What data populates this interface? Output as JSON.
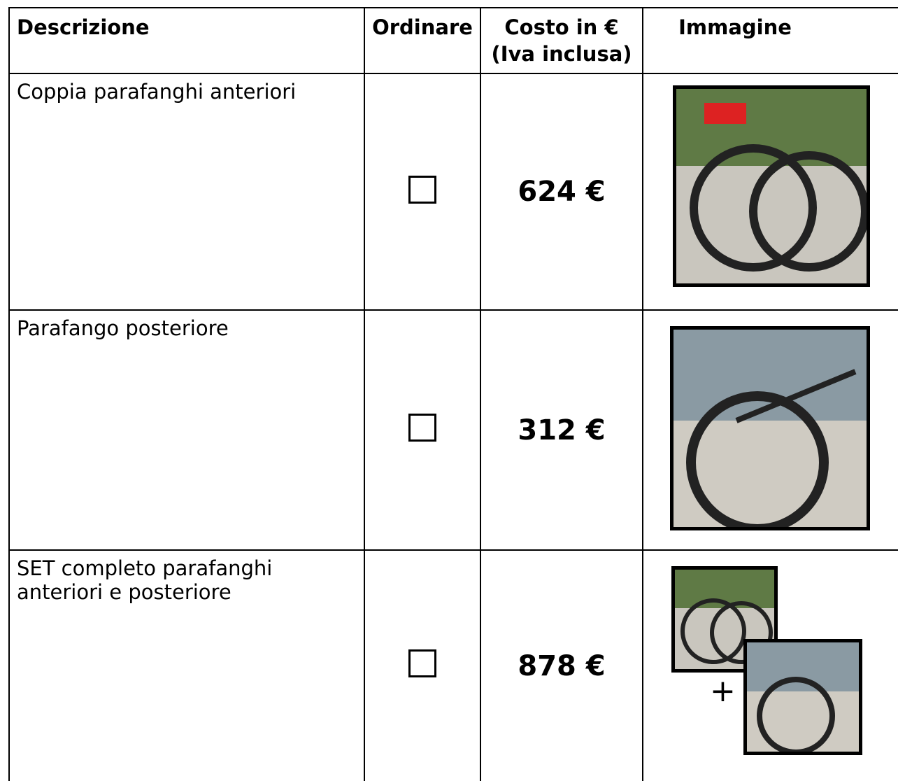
{
  "table": {
    "header": [
      "Descrizione",
      "Ordinare",
      [
        "Costo in €",
        "(Iva inclusa)"
      ],
      "Immagine"
    ],
    "rows": [
      {
        "description": "Coppia parafanghi anteriori",
        "price": "624 €"
      },
      {
        "description": "Parafango posteriore",
        "price": "312 €"
      },
      {
        "description": "SET completo parafanghi anteriori e posteriore",
        "price": "878 €",
        "image_join": "+"
      }
    ]
  }
}
